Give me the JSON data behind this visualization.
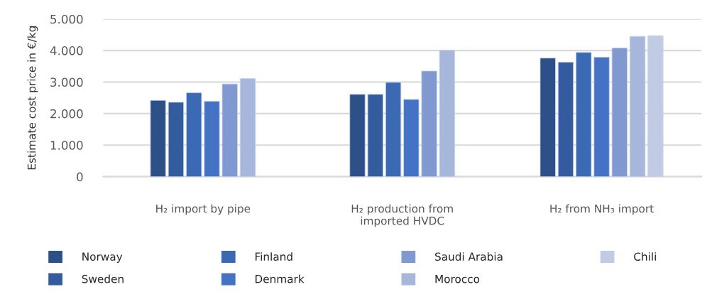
{
  "chart_data": {
    "type": "bar",
    "ylabel": "Estimate cost price in €/kg",
    "categories": [
      "H₂ import by pipe",
      "H₂ production from\nimported HVDC",
      "H₂ from NH₃ import"
    ],
    "series": [
      {
        "name": "Norway",
        "color": "#2e5089",
        "values": [
          2420,
          2610,
          3760
        ]
      },
      {
        "name": "Sweden",
        "color": "#335c9f",
        "values": [
          2360,
          2610,
          3630
        ]
      },
      {
        "name": "Finland",
        "color": "#3b69b3",
        "values": [
          2660,
          2990,
          3940
        ]
      },
      {
        "name": "Denmark",
        "color": "#4472c4",
        "values": [
          2390,
          2450,
          3790
        ]
      },
      {
        "name": "Saudi Arabia",
        "color": "#8099d0",
        "values": [
          2940,
          3350,
          4080
        ]
      },
      {
        "name": "Morocco",
        "color": "#a7b6db",
        "values": [
          3110,
          4010,
          4450
        ]
      },
      {
        "name": "Chili",
        "color": "#c1cbe4",
        "values": [
          null,
          null,
          4470
        ]
      }
    ],
    "ylim": [
      0,
      5000
    ],
    "yticks": [
      {
        "value": 0,
        "label": "0"
      },
      {
        "value": 1000,
        "label": "1.000"
      },
      {
        "value": 2000,
        "label": "2.000"
      },
      {
        "value": 3000,
        "label": "3.000"
      },
      {
        "value": 4000,
        "label": "4.000"
      },
      {
        "value": 5000,
        "label": "5.000"
      }
    ],
    "grid": "y",
    "legend": "bottom"
  }
}
